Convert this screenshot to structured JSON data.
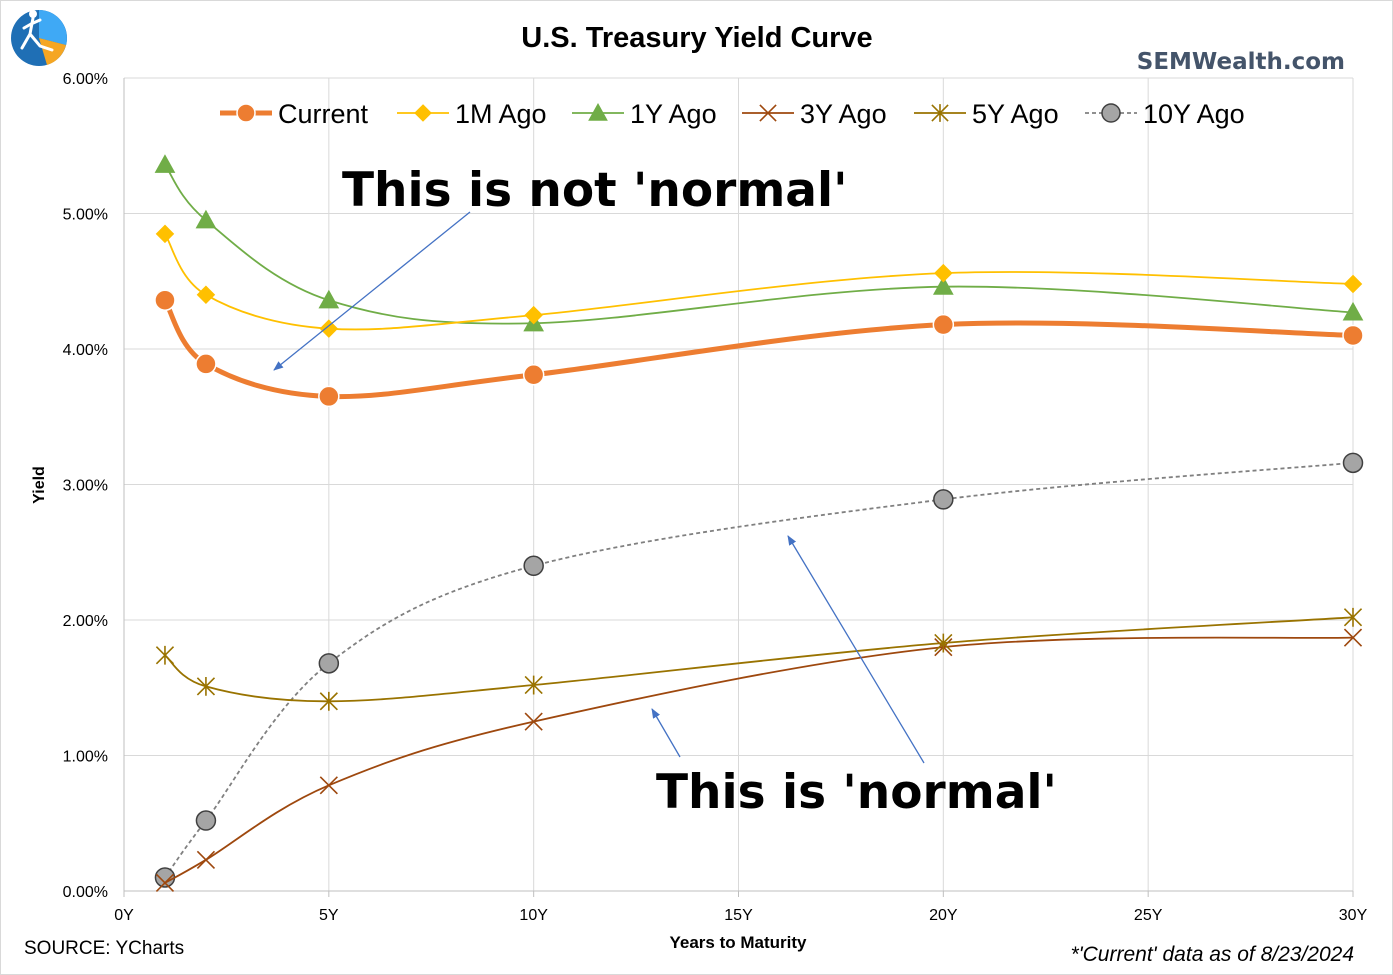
{
  "chart_data": {
    "type": "line",
    "title": "U.S. Treasury Yield Curve",
    "brand": "SEMWealth.com",
    "xlabel": "Years to Maturity",
    "ylabel": "Yield",
    "xlim": [
      0,
      30
    ],
    "ylim": [
      0,
      6
    ],
    "x_ticks": [
      0,
      5,
      10,
      15,
      20,
      25,
      30
    ],
    "x_tick_labels": [
      "0Y",
      "5Y",
      "10Y",
      "15Y",
      "20Y",
      "25Y",
      "30Y"
    ],
    "y_ticks": [
      0,
      1,
      2,
      3,
      4,
      5,
      6
    ],
    "y_tick_labels": [
      "0.00%",
      "1.00%",
      "2.00%",
      "3.00%",
      "4.00%",
      "5.00%",
      "6.00%"
    ],
    "grid": true,
    "legend_position": "top",
    "x": [
      1,
      2,
      5,
      10,
      20,
      30
    ],
    "series": [
      {
        "name": "Current",
        "values": [
          4.36,
          3.89,
          3.65,
          3.81,
          4.18,
          4.1
        ],
        "color": "#ed7d31",
        "marker": "circle"
      },
      {
        "name": "1M Ago",
        "values": [
          4.85,
          4.4,
          4.15,
          4.25,
          4.56,
          4.48
        ],
        "color": "#ffc000",
        "marker": "diamond"
      },
      {
        "name": "1Y Ago",
        "values": [
          5.36,
          4.95,
          4.36,
          4.19,
          4.46,
          4.27
        ],
        "color": "#70ad47",
        "marker": "triangle"
      },
      {
        "name": "3Y Ago",
        "values": [
          0.06,
          0.23,
          0.78,
          1.25,
          1.8,
          1.87
        ],
        "color": "#9e480e",
        "marker": "x"
      },
      {
        "name": "5Y Ago",
        "values": [
          1.74,
          1.51,
          1.4,
          1.52,
          1.83,
          2.02
        ],
        "color": "#997300",
        "marker": "asterisk"
      },
      {
        "name": "10Y Ago",
        "values": [
          0.1,
          0.52,
          1.68,
          2.4,
          2.89,
          3.16
        ],
        "color": "#808080",
        "marker": "circle-gray",
        "dashed": true
      }
    ],
    "annotations": {
      "not_normal": "This is not 'normal'",
      "normal": "This is 'normal'"
    },
    "source": "SOURCE: YCharts",
    "footnote": "*'Current' data as of 8/23/2024"
  }
}
